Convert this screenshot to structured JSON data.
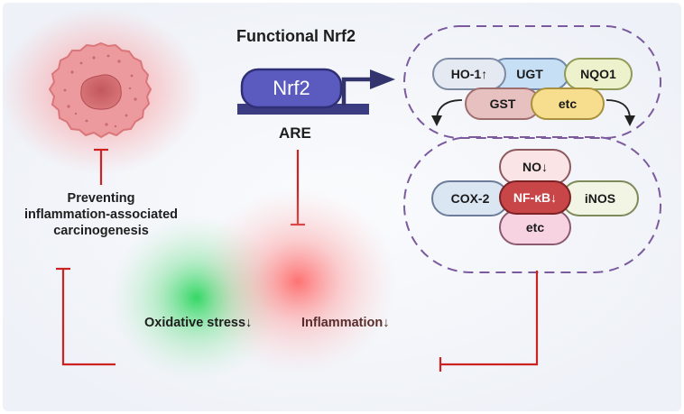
{
  "title": "Functional Nrf2",
  "nrf2_label": "Nrf2",
  "are_label": "ARE",
  "enzymes": {
    "ho1": "HO-1↑",
    "ugt": "UGT",
    "nqo1": "NQO1",
    "gst": "GST",
    "etc": "etc"
  },
  "inflammatory_markers": {
    "no": "NO↓",
    "cox2": "COX-2",
    "nfkb": "NF-κB↓",
    "inos": "iNOS",
    "etc": "etc"
  },
  "preventing_text": {
    "line1": "Preventing",
    "line2": "inflammation-associated",
    "line3": "carcinogenesis"
  },
  "oxidative_stress": "Oxidative stress↓",
  "inflammation": "Inflammation↓",
  "colors": {
    "nrf2_fill": "#5b5bbf",
    "arrow": "#33336e",
    "inhibit_line": "#cc2222",
    "dashed_border": "#7b5a9e",
    "green_glow": "#25d45a",
    "red_glow": "#ff6a6a",
    "cell": "#e47f84"
  }
}
